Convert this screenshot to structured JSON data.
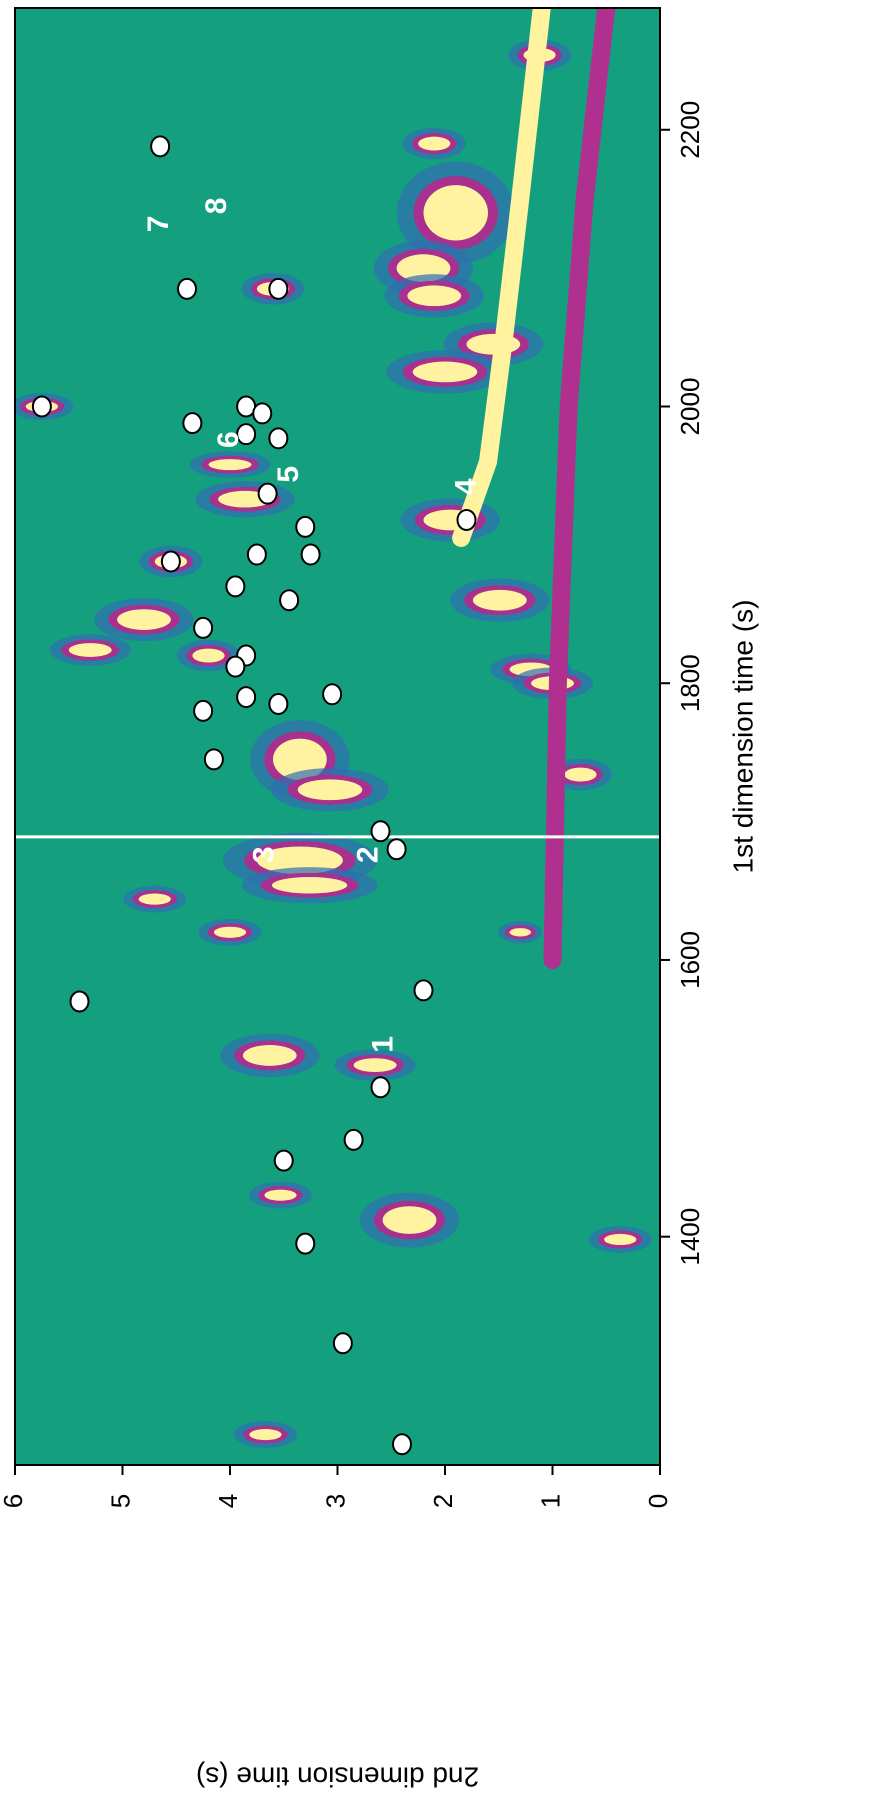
{
  "chart_data": {
    "type": "scatter",
    "x_label": "1st dimension time (s)",
    "y_label": "2nd dimension time (s)",
    "xlim": [
      1235,
      2288
    ],
    "ylim": [
      0,
      6
    ],
    "xticks": [
      1400,
      1600,
      1800,
      2000,
      2200
    ],
    "yticks": [
      0,
      1,
      2,
      3,
      4,
      5,
      6
    ],
    "background": "#14a07f",
    "vline": 1689,
    "series": [
      {
        "color": "#ffffff",
        "x": [
          2188,
          2085,
          2085,
          2000,
          1988,
          2000,
          1995,
          1980,
          1977,
          1937,
          1918,
          1913,
          1893,
          1893,
          1888,
          1870,
          1860,
          1840,
          1820,
          1812,
          1790,
          1785,
          1780,
          1792,
          1745,
          1693,
          1680,
          1578,
          1570,
          1508,
          1455,
          1470,
          1395,
          1323,
          1250
        ],
        "y": [
          4.65,
          4.4,
          3.55,
          5.75,
          4.35,
          3.85,
          3.7,
          3.85,
          3.55,
          3.65,
          1.8,
          3.3,
          3.25,
          3.75,
          4.55,
          3.95,
          3.45,
          4.25,
          3.85,
          3.95,
          3.85,
          3.55,
          4.25,
          3.05,
          4.15,
          2.6,
          2.45,
          2.2,
          5.4,
          2.6,
          3.5,
          2.85,
          3.3,
          2.95,
          2.4
        ]
      }
    ],
    "annotations": [
      {
        "text": "1",
        "x": 1539,
        "y": 2.56
      },
      {
        "text": "2",
        "x": 1676,
        "y": 2.7
      },
      {
        "text": "3",
        "x": 1676,
        "y": 3.67
      },
      {
        "text": "4",
        "x": 1942,
        "y": 1.79
      },
      {
        "text": "5",
        "x": 1951,
        "y": 3.44
      },
      {
        "text": "6",
        "x": 1976,
        "y": 4.0
      },
      {
        "text": "7",
        "x": 2132,
        "y": 4.65
      },
      {
        "text": "8",
        "x": 2145,
        "y": 4.11
      }
    ],
    "streaks": [
      {
        "color": "#fff3a0",
        "x": [
          1905,
          1960,
          2050,
          2150,
          2288
        ],
        "y": [
          1.85,
          1.6,
          1.45,
          1.3,
          1.1
        ]
      },
      {
        "color": "#b0308f",
        "x": [
          1600,
          1800,
          2000,
          2150,
          2288
        ],
        "y": [
          1.0,
          0.95,
          0.85,
          0.7,
          0.5
        ]
      }
    ],
    "spots": {
      "x": [
        2254,
        2140,
        2100,
        2080,
        2045,
        2025,
        2190,
        1958,
        1933,
        1918,
        1888,
        1846,
        1824,
        1860,
        1810,
        1800,
        1734,
        1745,
        1723,
        1672,
        1654,
        1531,
        1524,
        1412,
        1430,
        1398,
        1257,
        1644,
        1620,
        2085,
        2000,
        1820,
        1620
      ],
      "y": [
        1.12,
        1.9,
        2.2,
        2.1,
        1.55,
        2.0,
        2.1,
        4.0,
        3.86,
        1.95,
        4.55,
        4.8,
        5.3,
        1.49,
        1.2,
        1.0,
        0.74,
        3.35,
        3.07,
        3.35,
        3.26,
        3.63,
        2.65,
        2.33,
        3.53,
        0.37,
        3.67,
        4.7,
        4.0,
        3.6,
        5.75,
        4.2,
        1.3
      ],
      "w": [
        10,
        40,
        20,
        15,
        15,
        15,
        10,
        8,
        12,
        15,
        10,
        15,
        10,
        15,
        10,
        10,
        10,
        30,
        15,
        20,
        12,
        15,
        10,
        20,
        8,
        8,
        8,
        8,
        8,
        10,
        8,
        10,
        6
      ],
      "h": [
        0.3,
        0.6,
        0.5,
        0.5,
        0.5,
        0.6,
        0.3,
        0.4,
        0.5,
        0.5,
        0.3,
        0.5,
        0.4,
        0.5,
        0.4,
        0.4,
        0.3,
        0.5,
        0.6,
        0.8,
        0.7,
        0.5,
        0.4,
        0.5,
        0.3,
        0.3,
        0.3,
        0.3,
        0.3,
        0.3,
        0.3,
        0.3,
        0.2
      ]
    }
  }
}
